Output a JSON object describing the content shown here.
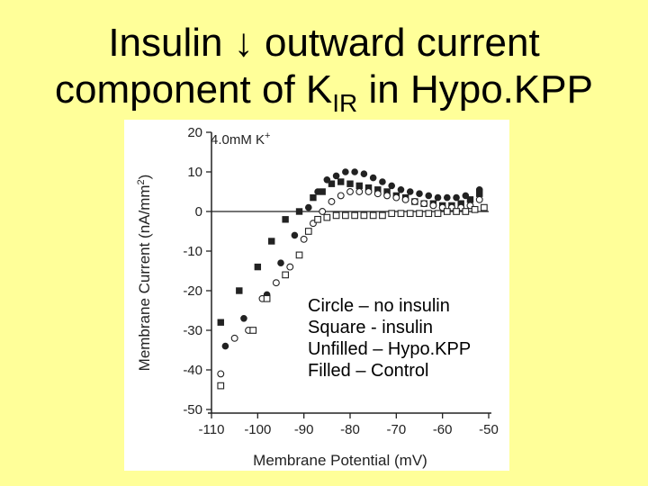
{
  "title": {
    "line1_before": "Insulin",
    "arrow": "↓",
    "line1_after": "outward current",
    "line2_before": "component of K",
    "line2_sub": "IR",
    "line2_after": " in Hypo.KPP"
  },
  "legend_notes": [
    "Circle – no insulin",
    "Square - insulin",
    "Unfilled – Hypo.KPP",
    "Filled – Control"
  ],
  "chart_data": {
    "type": "scatter",
    "annotation": "4.0mM K+",
    "xlabel": "Membrane Potential (mV)",
    "ylabel": "Membrane Current (nA/mm2)",
    "xlim": [
      -110,
      -50
    ],
    "ylim": [
      -50,
      20
    ],
    "xticks": [
      -110,
      -100,
      -90,
      -80,
      -70,
      -60,
      -50
    ],
    "yticks": [
      20,
      10,
      0,
      -10,
      -20,
      -30,
      -40,
      -50
    ],
    "zero_line": true,
    "grid": false,
    "colors": {
      "mark": "#222222"
    },
    "series": [
      {
        "marker": "circle",
        "filled": true,
        "points": [
          [
            -107,
            -34
          ],
          [
            -103,
            -27
          ],
          [
            -98,
            -21
          ],
          [
            -95,
            -13
          ],
          [
            -92,
            -6
          ],
          [
            -89,
            1
          ],
          [
            -87,
            5
          ],
          [
            -85,
            8
          ],
          [
            -83,
            9
          ],
          [
            -81,
            10
          ],
          [
            -79,
            10
          ],
          [
            -77,
            9.5
          ],
          [
            -75,
            8.5
          ],
          [
            -73,
            7.5
          ],
          [
            -71,
            6.5
          ],
          [
            -69,
            5.5
          ],
          [
            -67,
            5
          ],
          [
            -65,
            4.5
          ],
          [
            -63,
            4
          ],
          [
            -61,
            3.5
          ],
          [
            -59,
            3.5
          ],
          [
            -57,
            3.5
          ],
          [
            -55,
            4
          ],
          [
            -52,
            5.5
          ]
        ]
      },
      {
        "marker": "square",
        "filled": true,
        "points": [
          [
            -108,
            -28
          ],
          [
            -104,
            -20
          ],
          [
            -100,
            -14
          ],
          [
            -97,
            -7.5
          ],
          [
            -94,
            -2
          ],
          [
            -91,
            0
          ],
          [
            -88,
            3.5
          ],
          [
            -86,
            5
          ],
          [
            -84,
            7
          ],
          [
            -82,
            7.5
          ],
          [
            -80,
            7
          ],
          [
            -78,
            6.5
          ],
          [
            -76,
            6
          ],
          [
            -74,
            5.5
          ],
          [
            -72,
            5
          ],
          [
            -70,
            4
          ],
          [
            -68,
            3.5
          ],
          [
            -66,
            2.5
          ],
          [
            -64,
            2
          ],
          [
            -62,
            2
          ],
          [
            -60,
            1.5
          ],
          [
            -58,
            1.5
          ],
          [
            -56,
            2
          ],
          [
            -54,
            3
          ],
          [
            -52,
            4.5
          ]
        ]
      },
      {
        "marker": "circle",
        "filled": false,
        "points": [
          [
            -108,
            -41
          ],
          [
            -105,
            -32
          ],
          [
            -102,
            -30
          ],
          [
            -99,
            -22
          ],
          [
            -96,
            -18
          ],
          [
            -93,
            -14
          ],
          [
            -90,
            -7
          ],
          [
            -88,
            -3
          ],
          [
            -86,
            0
          ],
          [
            -84,
            2.5
          ],
          [
            -82,
            4
          ],
          [
            -80,
            5
          ],
          [
            -78,
            5
          ],
          [
            -76,
            5
          ],
          [
            -74,
            4.5
          ],
          [
            -72,
            4
          ],
          [
            -70,
            3.5
          ],
          [
            -68,
            3
          ],
          [
            -66,
            2.5
          ],
          [
            -64,
            2
          ],
          [
            -62,
            1.5
          ],
          [
            -60,
            1
          ],
          [
            -58,
            1
          ],
          [
            -56,
            1
          ],
          [
            -54,
            1.5
          ],
          [
            -52,
            3
          ]
        ]
      },
      {
        "marker": "square",
        "filled": false,
        "points": [
          [
            -108,
            -44
          ],
          [
            -101,
            -30
          ],
          [
            -98,
            -22
          ],
          [
            -94,
            -16
          ],
          [
            -91,
            -11
          ],
          [
            -89,
            -5
          ],
          [
            -87,
            -2
          ],
          [
            -85,
            -1.5
          ],
          [
            -83,
            -1
          ],
          [
            -81,
            -1
          ],
          [
            -79,
            -1
          ],
          [
            -77,
            -1
          ],
          [
            -75,
            -1
          ],
          [
            -73,
            -1
          ],
          [
            -71,
            -0.5
          ],
          [
            -69,
            -0.5
          ],
          [
            -67,
            -0.5
          ],
          [
            -65,
            -0.5
          ],
          [
            -63,
            -0.5
          ],
          [
            -61,
            -0.5
          ],
          [
            -59,
            0
          ],
          [
            -57,
            0
          ],
          [
            -55,
            0
          ],
          [
            -53,
            0.5
          ],
          [
            -51,
            1
          ]
        ]
      }
    ]
  }
}
